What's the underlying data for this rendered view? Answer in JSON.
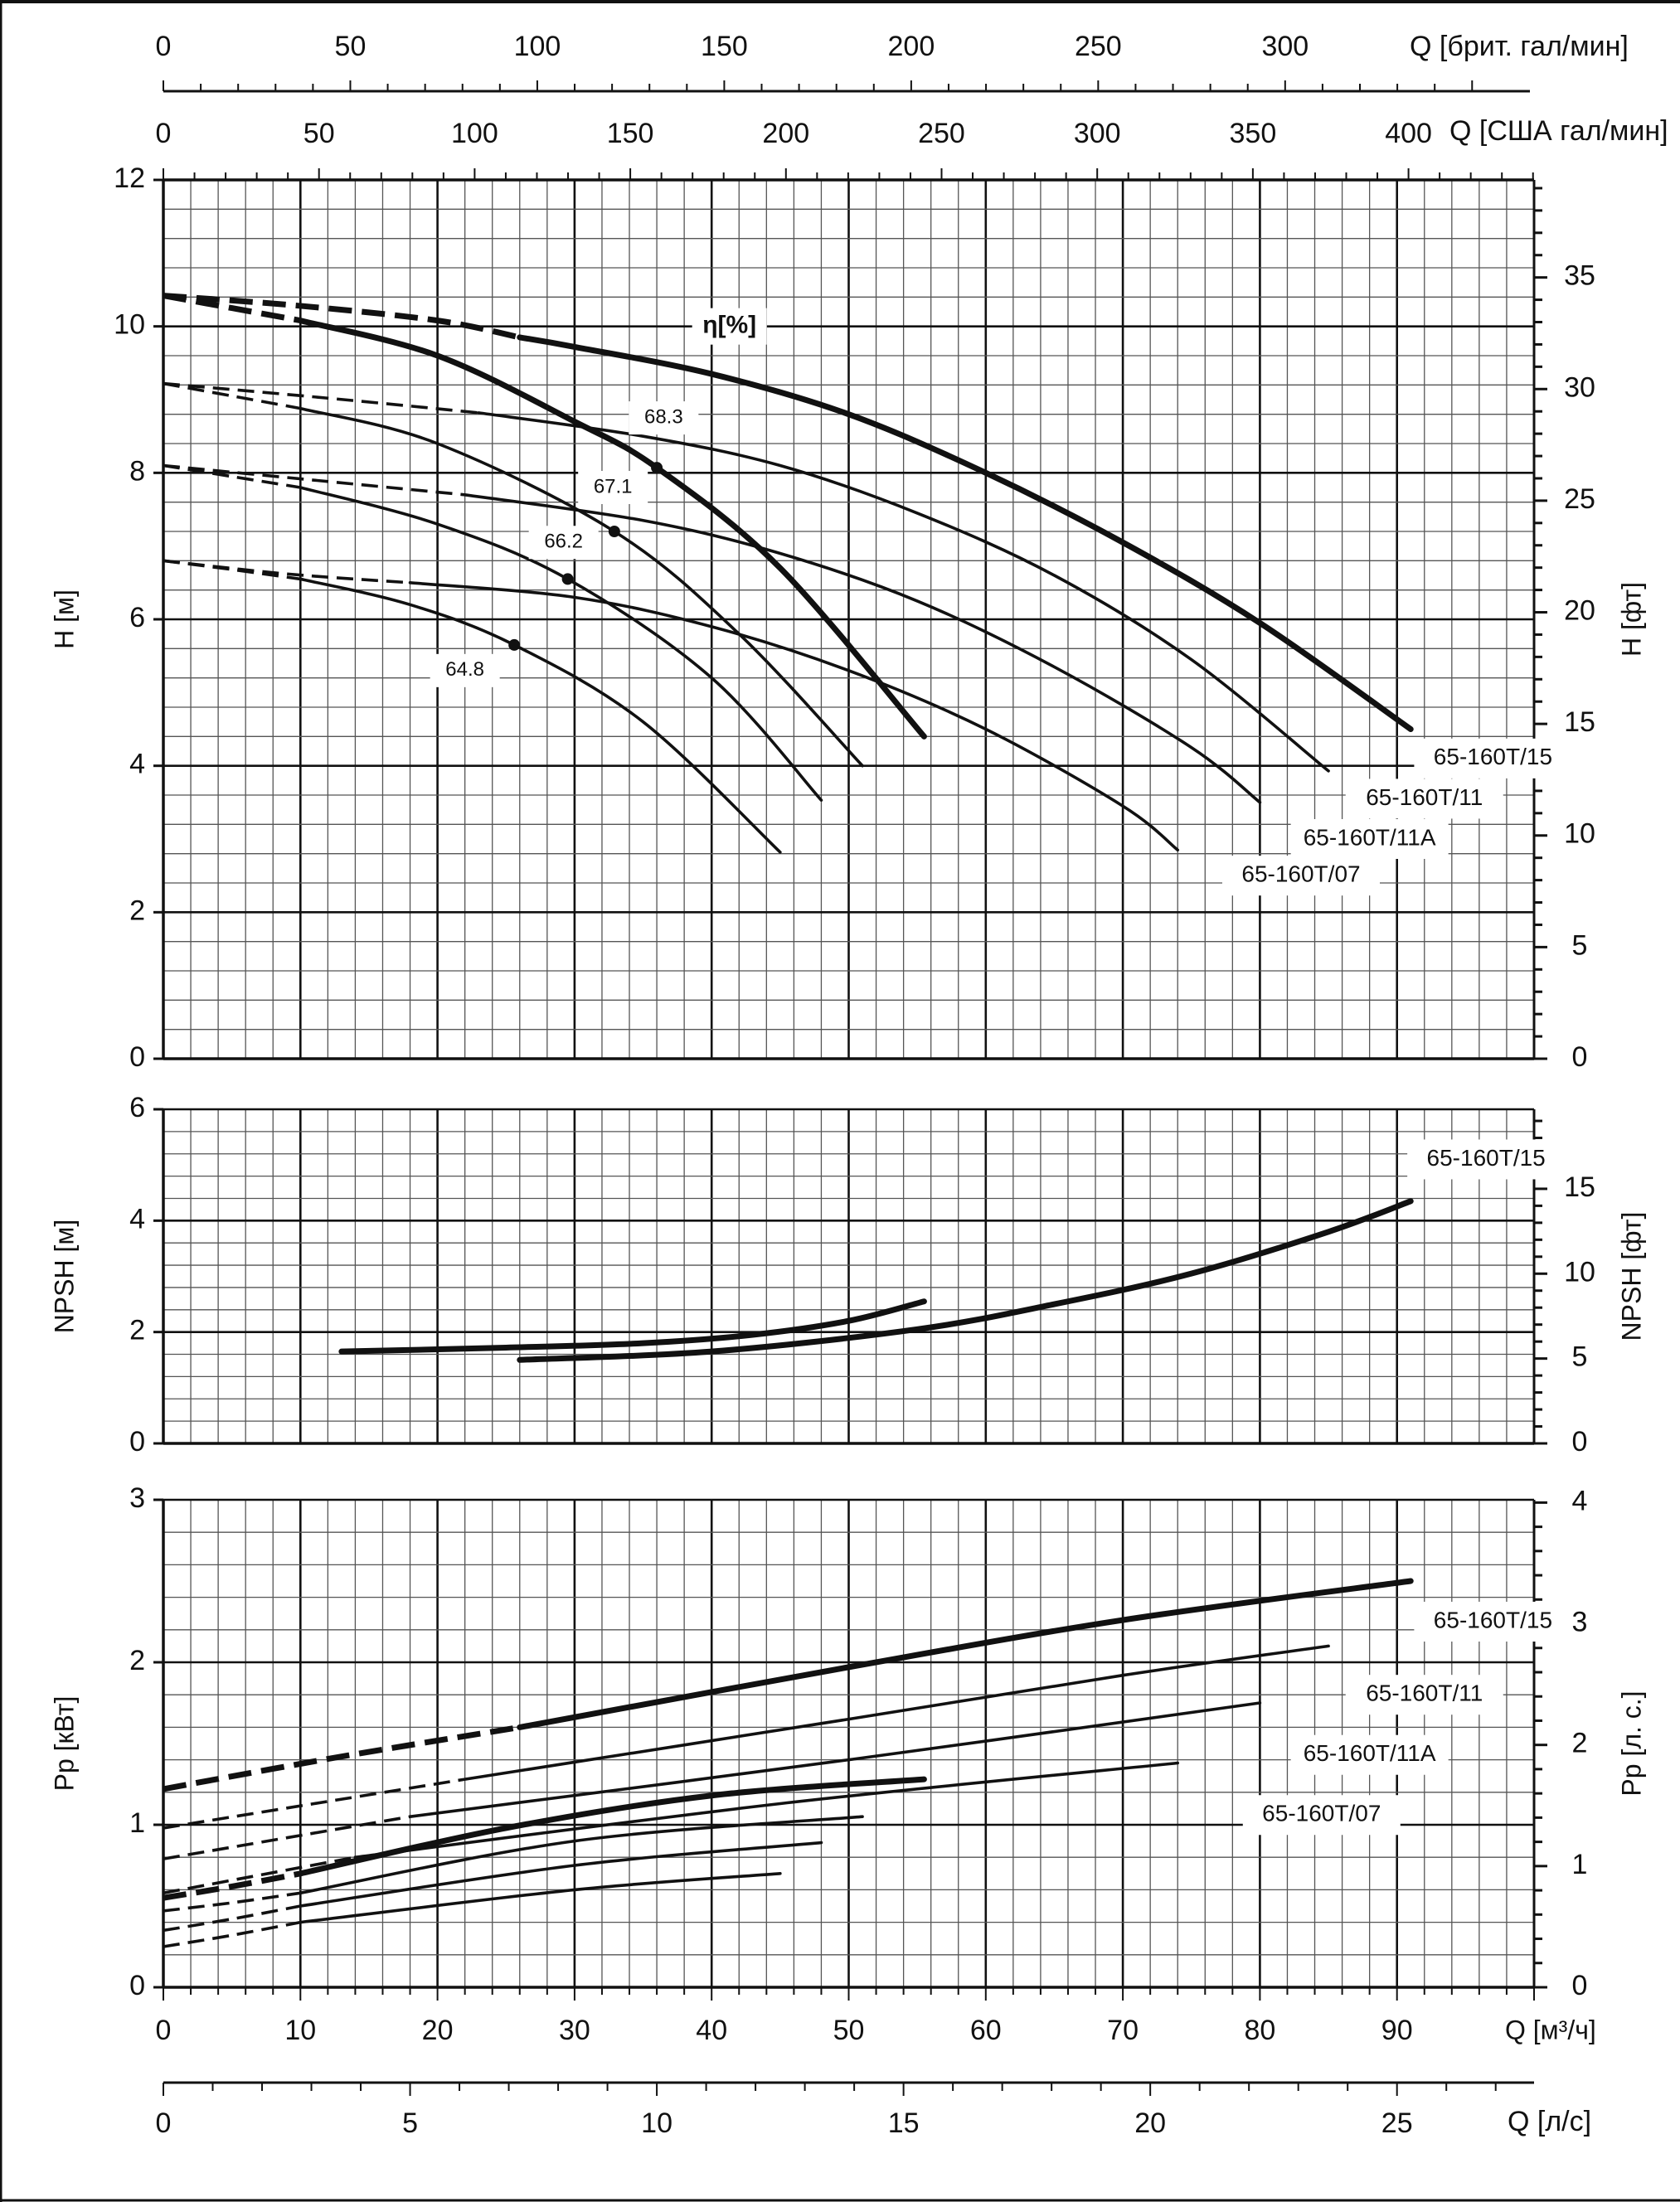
{
  "colors": {
    "line": "#111111",
    "grid": "#555555",
    "background": "#ffffff"
  },
  "top_axes": {
    "brit": {
      "label": "Q [брит. гал/мин]",
      "ticks": [
        0,
        50,
        100,
        150,
        200,
        250,
        300
      ],
      "to_m3h": 0.2728
    },
    "us": {
      "label": "Q [США гал/мин]",
      "ticks": [
        0,
        50,
        100,
        150,
        200,
        250,
        300,
        350,
        400
      ],
      "to_m3h": 0.2271
    }
  },
  "bottom_axes": {
    "m3h": {
      "label": "Q [м³/ч]",
      "ticks": [
        0,
        10,
        20,
        30,
        40,
        50,
        60,
        70,
        80,
        90
      ]
    },
    "ls": {
      "label": "Q [л/с]",
      "ticks": [
        0,
        5,
        10,
        15,
        20,
        25
      ],
      "to_m3h": 3.6
    }
  },
  "chart_data": [
    {
      "type": "line",
      "id": "head",
      "ylabel": "H [м]",
      "ylabel_right": "H [фт]",
      "xlim": [
        0,
        100
      ],
      "ylim": [
        0,
        12
      ],
      "yticks": [
        0,
        2,
        4,
        6,
        8,
        10,
        12
      ],
      "yticks_right": [
        0,
        5,
        10,
        15,
        20,
        25,
        30,
        35
      ],
      "right_to_left": 0.3048,
      "grid": true,
      "annotation": "η[%]",
      "annotation_at": [
        41.3,
        10.0
      ],
      "series": [
        {
          "name": "65-160T/15",
          "weight": "thick",
          "dashed": [
            [
              0,
              10.42
            ],
            [
              10,
              10.28
            ],
            [
              20,
              10.08
            ],
            [
              26,
              9.85
            ]
          ],
          "points": [
            [
              26,
              9.85
            ],
            [
              30,
              9.72
            ],
            [
              40,
              9.35
            ],
            [
              50,
              8.8
            ],
            [
              60,
              8.0
            ],
            [
              70,
              7.05
            ],
            [
              80,
              5.95
            ],
            [
              91,
              4.5
            ]
          ],
          "label_at": [
            97,
            4.1
          ]
        },
        {
          "name": "65-160T/11",
          "weight": "normal",
          "dashed": [
            [
              0,
              9.22
            ],
            [
              12,
              9.02
            ],
            [
              23,
              8.82
            ]
          ],
          "points": [
            [
              23,
              8.82
            ],
            [
              35,
              8.5
            ],
            [
              45,
              8.1
            ],
            [
              55,
              7.45
            ],
            [
              65,
              6.6
            ],
            [
              75,
              5.45
            ],
            [
              85,
              3.93
            ]
          ],
          "label_at": [
            92,
            3.55
          ]
        },
        {
          "name": "65-160T/11A",
          "weight": "normal",
          "dashed": [
            [
              0,
              8.1
            ],
            [
              11,
              7.9
            ],
            [
              22,
              7.7
            ]
          ],
          "points": [
            [
              22,
              7.7
            ],
            [
              35,
              7.35
            ],
            [
              45,
              6.9
            ],
            [
              55,
              6.25
            ],
            [
              65,
              5.35
            ],
            [
              75,
              4.25
            ],
            [
              80,
              3.5
            ]
          ],
          "label_at": [
            88,
            3.0
          ]
        },
        {
          "name": "65-160T/07",
          "weight": "normal",
          "dashed": [
            [
              0,
              6.8
            ],
            [
              9,
              6.62
            ],
            [
              18,
              6.5
            ]
          ],
          "points": [
            [
              18,
              6.5
            ],
            [
              30,
              6.3
            ],
            [
              40,
              5.9
            ],
            [
              50,
              5.3
            ],
            [
              60,
              4.5
            ],
            [
              70,
              3.45
            ],
            [
              74,
              2.85
            ]
          ],
          "label_at": [
            83,
            2.5
          ]
        },
        {
          "weight": "thick",
          "dashed": [
            [
              0,
              10.42
            ],
            [
              5,
              10.25
            ],
            [
              10,
              10.08
            ]
          ],
          "points": [
            [
              10,
              10.08
            ],
            [
              20,
              9.6
            ],
            [
              30,
              8.7
            ],
            [
              36,
              8.07
            ],
            [
              45,
              6.7
            ],
            [
              55.5,
              4.4
            ]
          ],
          "efficiency": {
            "q": 36,
            "h": 8.07,
            "value": "68.3",
            "label_at": [
              36.5,
              8.75
            ]
          }
        },
        {
          "weight": "normal",
          "dashed": [
            [
              0,
              9.22
            ],
            [
              5,
              9.05
            ],
            [
              10,
              8.88
            ]
          ],
          "points": [
            [
              10,
              8.88
            ],
            [
              20,
              8.4
            ],
            [
              32.9,
              7.2
            ],
            [
              42,
              5.8
            ],
            [
              51,
              4.0
            ]
          ],
          "efficiency": {
            "q": 32.9,
            "h": 7.2,
            "value": "67.1",
            "label_at": [
              32.8,
              7.8
            ]
          }
        },
        {
          "weight": "normal",
          "dashed": [
            [
              0,
              8.1
            ],
            [
              5,
              7.95
            ],
            [
              10,
              7.8
            ]
          ],
          "points": [
            [
              10,
              7.8
            ],
            [
              20,
              7.3
            ],
            [
              29.5,
              6.55
            ],
            [
              40,
              5.2
            ],
            [
              48,
              3.53
            ]
          ],
          "efficiency": {
            "q": 29.5,
            "h": 6.55,
            "value": "66.2",
            "label_at": [
              29.2,
              7.05
            ]
          }
        },
        {
          "weight": "normal",
          "dashed": [
            [
              0,
              6.8
            ],
            [
              5,
              6.68
            ],
            [
              10,
              6.55
            ]
          ],
          "points": [
            [
              10,
              6.55
            ],
            [
              18,
              6.2
            ],
            [
              25.6,
              5.65
            ],
            [
              35,
              4.6
            ],
            [
              45,
              2.82
            ]
          ],
          "efficiency": {
            "q": 25.6,
            "h": 5.65,
            "value": "64.8",
            "label_at": [
              22,
              5.3
            ]
          }
        }
      ]
    },
    {
      "type": "line",
      "id": "npsh",
      "ylabel": "NPSH [м]",
      "ylabel_right": "NPSH [фт]",
      "xlim": [
        0,
        100
      ],
      "ylim": [
        0,
        6
      ],
      "yticks": [
        0,
        2,
        4,
        6
      ],
      "yticks_right": [
        0,
        5,
        10,
        15
      ],
      "right_to_left": 0.3048,
      "grid": true,
      "series": [
        {
          "weight": "thick",
          "points": [
            [
              13,
              1.65
            ],
            [
              25,
              1.72
            ],
            [
              35,
              1.8
            ],
            [
              43,
              1.95
            ],
            [
              50,
              2.2
            ],
            [
              55.5,
              2.55
            ]
          ]
        },
        {
          "name": "65-160T/15",
          "weight": "thick",
          "points": [
            [
              26,
              1.5
            ],
            [
              40,
              1.65
            ],
            [
              55,
              2.05
            ],
            [
              65,
              2.5
            ],
            [
              75,
              3.05
            ],
            [
              85,
              3.8
            ],
            [
              91,
              4.35
            ]
          ],
          "label_at": [
            96.5,
            5.1
          ]
        }
      ]
    },
    {
      "type": "line",
      "id": "power",
      "ylabel": "Pp [кВт]",
      "ylabel_right": "Pp [л. с.]",
      "xlim": [
        0,
        100
      ],
      "ylim": [
        0,
        3
      ],
      "yticks": [
        0,
        1,
        2,
        3
      ],
      "yticks_right": [
        0,
        1,
        2,
        3,
        4
      ],
      "right_to_left": 0.7457,
      "grid": true,
      "series": [
        {
          "name": "65-160T/15",
          "weight": "thick",
          "dashed": [
            [
              0,
              1.22
            ],
            [
              13,
              1.42
            ],
            [
              26,
              1.6
            ]
          ],
          "points": [
            [
              26,
              1.6
            ],
            [
              50,
              1.97
            ],
            [
              70,
              2.26
            ],
            [
              91,
              2.5
            ]
          ],
          "label_at": [
            97,
            2.25
          ]
        },
        {
          "name": "65-160T/11",
          "weight": "normal",
          "dashed": [
            [
              0,
              0.98
            ],
            [
              11,
              1.13
            ],
            [
              22,
              1.28
            ]
          ],
          "points": [
            [
              22,
              1.28
            ],
            [
              50,
              1.65
            ],
            [
              70,
              1.92
            ],
            [
              85,
              2.1
            ]
          ],
          "label_at": [
            92,
            1.8
          ]
        },
        {
          "name": "65-160T/11A",
          "weight": "normal",
          "dashed": [
            [
              0,
              0.79
            ],
            [
              9,
              0.92
            ],
            [
              18,
              1.05
            ]
          ],
          "points": [
            [
              18,
              1.05
            ],
            [
              50,
              1.4
            ],
            [
              80,
              1.75
            ]
          ],
          "label_at": [
            88,
            1.43
          ]
        },
        {
          "name": "65-160T/07",
          "weight": "normal",
          "dashed": [
            [
              0,
              0.58
            ],
            [
              7,
              0.69
            ],
            [
              14,
              0.8
            ]
          ],
          "points": [
            [
              14,
              0.8
            ],
            [
              45,
              1.13
            ],
            [
              74,
              1.38
            ]
          ],
          "label_at": [
            84.5,
            1.06
          ]
        },
        {
          "weight": "thick",
          "dashed": [
            [
              0,
              0.55
            ],
            [
              5,
              0.62
            ],
            [
              10,
              0.7
            ]
          ],
          "points": [
            [
              10,
              0.7
            ],
            [
              25,
              0.98
            ],
            [
              40,
              1.18
            ],
            [
              55.5,
              1.28
            ]
          ]
        },
        {
          "weight": "normal",
          "dashed": [
            [
              0,
              0.47
            ],
            [
              5,
              0.52
            ],
            [
              10,
              0.58
            ]
          ],
          "points": [
            [
              10,
              0.58
            ],
            [
              30,
              0.9
            ],
            [
              51,
              1.05
            ]
          ]
        },
        {
          "weight": "normal",
          "dashed": [
            [
              0,
              0.35
            ],
            [
              5,
              0.42
            ],
            [
              10,
              0.5
            ]
          ],
          "points": [
            [
              10,
              0.5
            ],
            [
              30,
              0.75
            ],
            [
              48,
              0.89
            ]
          ]
        },
        {
          "weight": "normal",
          "dashed": [
            [
              0,
              0.25
            ],
            [
              5,
              0.32
            ],
            [
              10,
              0.4
            ]
          ],
          "points": [
            [
              10,
              0.4
            ],
            [
              30,
              0.6
            ],
            [
              45,
              0.7
            ]
          ]
        }
      ]
    }
  ]
}
